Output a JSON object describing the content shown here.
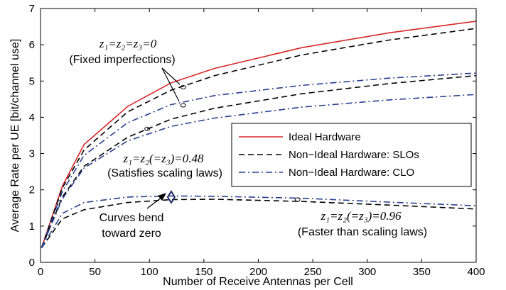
{
  "chart_data": {
    "type": "line",
    "xlabel": "Number of Receive Antennas per Cell",
    "ylabel": "Average Rate per UE [bit/channel use]",
    "xlim": [
      0,
      400
    ],
    "ylim": [
      0,
      7
    ],
    "xticks": [
      0,
      50,
      100,
      150,
      200,
      250,
      300,
      350,
      400
    ],
    "yticks": [
      0,
      1,
      2,
      3,
      4,
      5,
      6,
      7
    ],
    "grid": false,
    "legend_position": "center-right",
    "legend": [
      {
        "label": "Ideal Hardware",
        "style": "solid",
        "color": "#d62728"
      },
      {
        "label": "Non−Ideal Hardware: SLOs",
        "style": "dashed",
        "color": "#000000"
      },
      {
        "label": "Non−Ideal Hardware: CLO",
        "style": "dashdot",
        "color": "#2a3f8f"
      }
    ],
    "series": [
      {
        "legend_ref": 0,
        "color": "#d62728",
        "style": "solid",
        "x": [
          1,
          20,
          40,
          80,
          120,
          160,
          240,
          320,
          400
        ],
        "y": [
          0.4,
          2.1,
          3.25,
          4.3,
          4.95,
          5.35,
          5.92,
          6.33,
          6.65
        ]
      },
      {
        "legend_ref": 1,
        "color": "#000000",
        "style": "dashed",
        "x": [
          1,
          20,
          40,
          80,
          120,
          160,
          240,
          320,
          400
        ],
        "y": [
          0.4,
          2.05,
          3.1,
          4.15,
          4.75,
          5.15,
          5.72,
          6.13,
          6.45
        ]
      },
      {
        "legend_ref": 2,
        "color": "#2a3f8f",
        "style": "dashdot",
        "x": [
          1,
          20,
          40,
          80,
          120,
          160,
          240,
          320,
          400
        ],
        "y": [
          0.4,
          1.95,
          2.95,
          3.85,
          4.35,
          4.6,
          4.88,
          5.08,
          5.22
        ]
      },
      {
        "legend_ref": 1,
        "color": "#000000",
        "style": "dashed",
        "x": [
          1,
          20,
          40,
          80,
          120,
          160,
          240,
          320,
          400
        ],
        "y": [
          0.4,
          1.8,
          2.65,
          3.45,
          3.95,
          4.25,
          4.65,
          4.93,
          5.15
        ]
      },
      {
        "legend_ref": 2,
        "color": "#2a3f8f",
        "style": "dashdot",
        "x": [
          1,
          20,
          40,
          80,
          120,
          160,
          240,
          320,
          400
        ],
        "y": [
          0.4,
          1.75,
          2.6,
          3.35,
          3.75,
          3.98,
          4.28,
          4.48,
          4.63
        ]
      },
      {
        "legend_ref": 1,
        "color": "#000000",
        "style": "dashed",
        "x": [
          1,
          20,
          40,
          80,
          120,
          160,
          240,
          320,
          400
        ],
        "y": [
          0.4,
          1.2,
          1.45,
          1.65,
          1.73,
          1.74,
          1.68,
          1.58,
          1.47
        ]
      },
      {
        "legend_ref": 2,
        "color": "#2a3f8f",
        "style": "dashdot",
        "x": [
          1,
          20,
          40,
          80,
          120,
          160,
          240,
          320,
          400
        ],
        "y": [
          0.4,
          1.35,
          1.65,
          1.8,
          1.83,
          1.82,
          1.77,
          1.66,
          1.56
        ]
      }
    ],
    "annotations": [
      {
        "math": "z₁=z₂=z₃=0",
        "text": "(Fixed imperfections)"
      },
      {
        "math": "z₁=z₂(=z₃)=0.48",
        "text": "(Satisfies scaling laws)"
      },
      {
        "math": "z₁=z₂(=z₃)=0.96",
        "text": "(Faster than scaling laws)"
      },
      {
        "text_line1": "Curves bend",
        "text_line2": "toward zero"
      }
    ]
  }
}
